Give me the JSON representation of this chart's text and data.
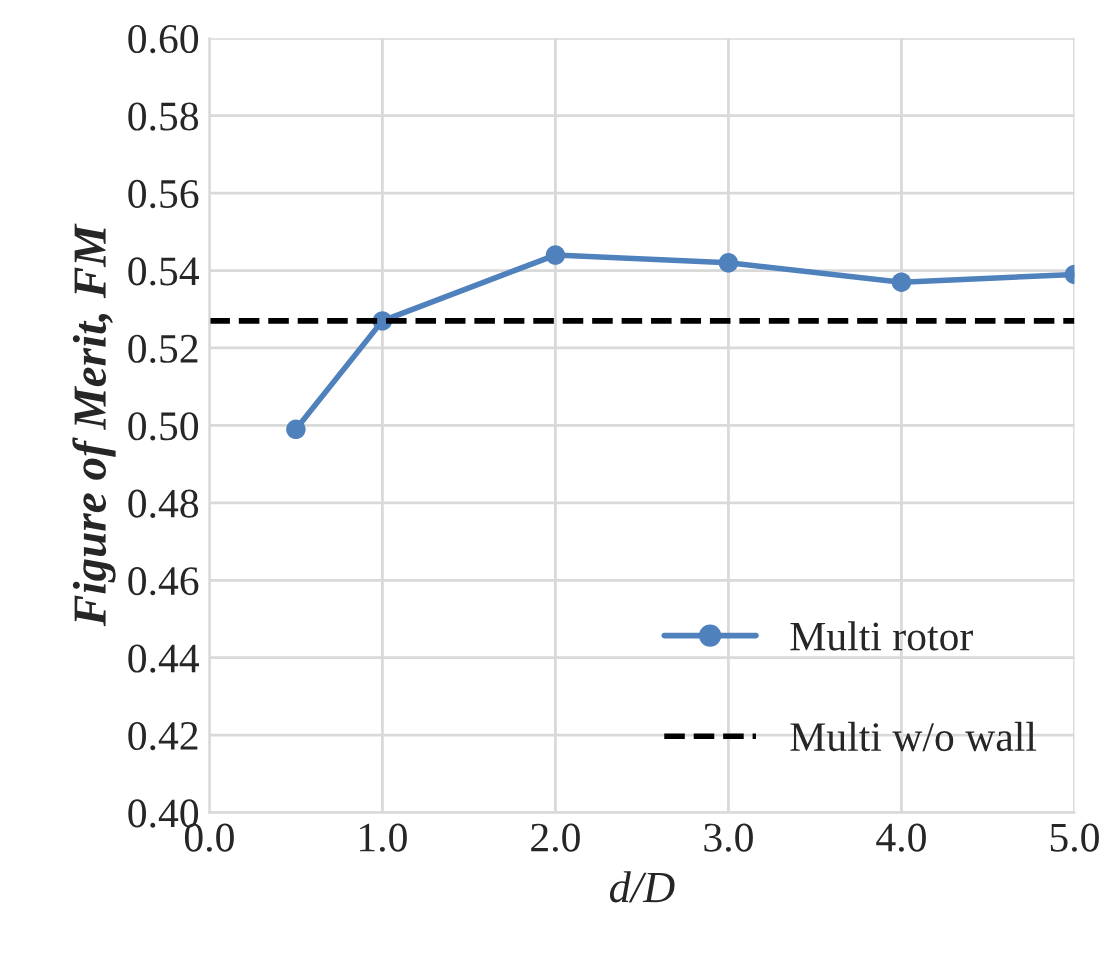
{
  "chart_data": {
    "type": "line",
    "xlabel": "d/D",
    "ylabel": "Figure of Merit, FM",
    "x": [
      0.5,
      1.0,
      2.0,
      3.0,
      4.0,
      5.0
    ],
    "series": [
      {
        "name": "Multi rotor",
        "color": "#4f81bd",
        "values": [
          0.499,
          0.527,
          0.544,
          0.542,
          0.537,
          0.539
        ]
      }
    ],
    "ref_lines": [
      {
        "axis": "y",
        "value": 0.527,
        "label": "Multi w/o wall",
        "color": "#000000",
        "line_style": "dashed"
      }
    ],
    "xlim": [
      0,
      5
    ],
    "xticks": [
      {
        "value": 0,
        "label": "0.0"
      },
      {
        "value": 1,
        "label": "1.0"
      },
      {
        "value": 2,
        "label": "2.0"
      },
      {
        "value": 3,
        "label": "3.0"
      },
      {
        "value": 4,
        "label": "4.0"
      },
      {
        "value": 5,
        "label": "5.0"
      }
    ],
    "ylim": [
      0.4,
      0.6
    ],
    "yticks": [
      {
        "value": 0.4,
        "label": "0.40"
      },
      {
        "value": 0.42,
        "label": "0.42"
      },
      {
        "value": 0.44,
        "label": "0.44"
      },
      {
        "value": 0.46,
        "label": "0.46"
      },
      {
        "value": 0.48,
        "label": "0.48"
      },
      {
        "value": 0.5,
        "label": "0.50"
      },
      {
        "value": 0.52,
        "label": "0.52"
      },
      {
        "value": 0.54,
        "label": "0.54"
      },
      {
        "value": 0.56,
        "label": "0.56"
      },
      {
        "value": 0.58,
        "label": "0.58"
      },
      {
        "value": 0.6,
        "label": "0.60"
      }
    ],
    "grid": true,
    "legend": "bottom right",
    "marker": "circle",
    "line_style": "solid"
  }
}
